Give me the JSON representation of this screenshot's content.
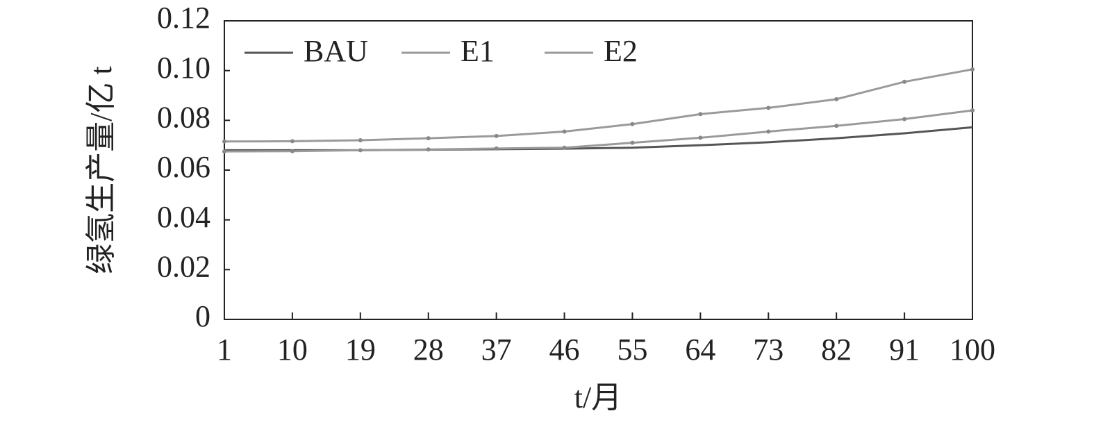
{
  "chart_data": {
    "type": "line",
    "xlabel": "t/月",
    "ylabel": "绿氢生产量/亿 t",
    "x": [
      1,
      10,
      19,
      28,
      37,
      46,
      55,
      64,
      73,
      82,
      91,
      100
    ],
    "series": [
      {
        "name": "BAU",
        "color": "#555555",
        "values": [
          0.068,
          0.068,
          0.068,
          0.0682,
          0.0684,
          0.0686,
          0.069,
          0.07,
          0.0712,
          0.0728,
          0.0748,
          0.0772
        ]
      },
      {
        "name": "E1",
        "color": "#9a9a9a",
        "values": [
          0.0675,
          0.0676,
          0.068,
          0.0683,
          0.0687,
          0.069,
          0.071,
          0.073,
          0.0755,
          0.0778,
          0.0805,
          0.084
        ]
      },
      {
        "name": "E2",
        "color": "#9a9a9a",
        "values": [
          0.0715,
          0.0716,
          0.072,
          0.0728,
          0.0737,
          0.0755,
          0.0785,
          0.0825,
          0.085,
          0.0885,
          0.0955,
          0.1005
        ]
      }
    ],
    "xlim": [
      1,
      100
    ],
    "xticks": [
      1,
      10,
      19,
      28,
      37,
      46,
      55,
      64,
      73,
      82,
      91,
      100
    ],
    "ylim": [
      0,
      0.12
    ],
    "yticks": [
      0,
      0.02,
      0.04,
      0.06,
      0.08,
      {
        "value": 0.1,
        "label": "0.10"
      },
      0.12
    ],
    "legend": "upper left"
  }
}
